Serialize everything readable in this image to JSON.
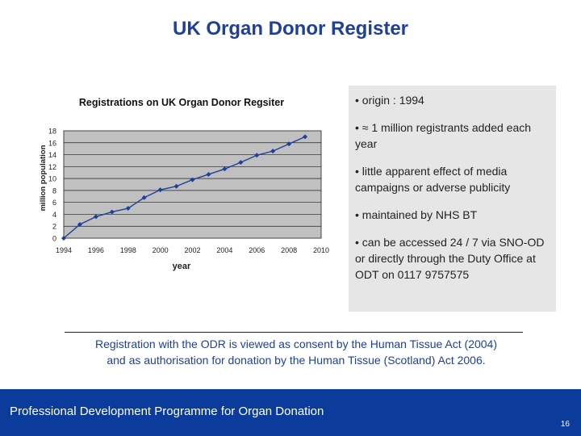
{
  "slide": {
    "title": "UK Organ Donor Register"
  },
  "bullets": [
    "• origin : 1994",
    "• ≈ 1 million registrants added each year",
    "• little apparent effect of media campaigns or adverse publicity",
    "• maintained by NHS BT",
    "• can be accessed 24 / 7 via SNO-OD or directly through the Duty Office at ODT on 0117 9757575"
  ],
  "consent": {
    "line1": "Registration with the ODR is viewed as consent by the Human Tissue Act (2004)",
    "line2": "and as authorisation for donation by the Human Tissue (Scotland) Act 2006."
  },
  "footer": {
    "text": "Professional Development Programme for Organ Donation",
    "page_number": "16"
  },
  "colors": {
    "title": "#1f3f9a",
    "footer_bg": "#0b3c9c",
    "plot_bg": "#c0c0c0",
    "series": "#1f3f9a",
    "box_bg": "#e6e6e6"
  },
  "chart_data": {
    "type": "line",
    "title": "Registrations on UK Organ Donor Regsiter",
    "xlabel": "year",
    "ylabel": "million population",
    "xlim": [
      1994,
      2010
    ],
    "ylim": [
      0,
      18
    ],
    "x_ticks": [
      "1994",
      "1996",
      "1998",
      "2000",
      "2002",
      "2004",
      "2006",
      "2008",
      "2010"
    ],
    "y_ticks": [
      "0",
      "2",
      "4",
      "6",
      "8",
      "10",
      "12",
      "14",
      "16",
      "18"
    ],
    "grid": "horizontal",
    "legend": "none",
    "series": [
      {
        "x": [
          1994,
          1995,
          1996,
          1997,
          1998,
          1999,
          2000,
          2001,
          2002,
          2003,
          2004,
          2005,
          2006,
          2007,
          2008,
          2009
        ],
        "values": [
          0.0,
          2.3,
          3.6,
          4.4,
          5.0,
          6.8,
          8.1,
          8.7,
          9.8,
          10.7,
          11.6,
          12.7,
          13.9,
          14.6,
          15.8,
          17.0
        ]
      }
    ]
  }
}
